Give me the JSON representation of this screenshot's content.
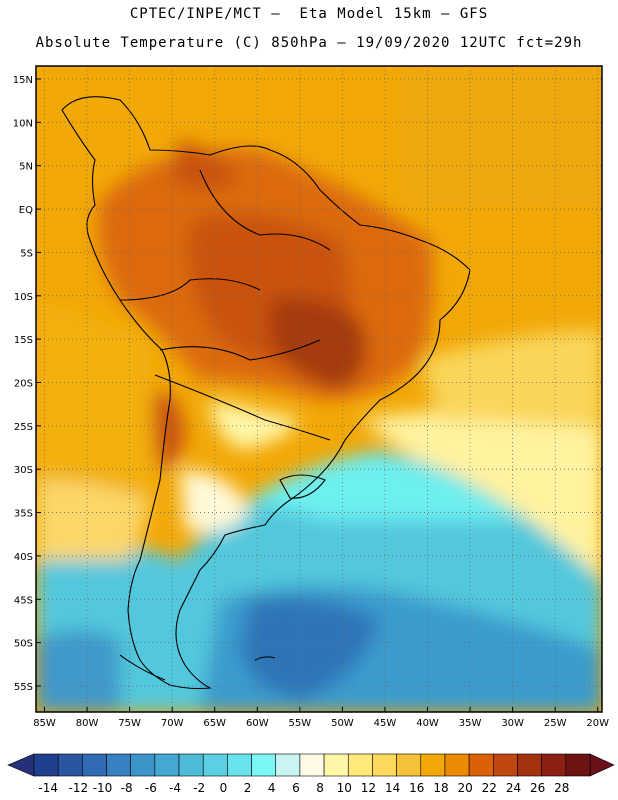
{
  "header": {
    "title_line1": "CPTEC/INPE/MCT –  Eta Model 15km – GFS",
    "title_line2": "Absolute Temperature (C) 850hPa – 19/09/2020 12UTC fct=29h"
  },
  "map": {
    "region": "South America",
    "lon_range": [
      -86,
      -19.5
    ],
    "lat_range": [
      -58,
      16.5
    ],
    "lon_ticks": [
      {
        "value": -85,
        "label": "85W"
      },
      {
        "value": -80,
        "label": "80W"
      },
      {
        "value": -75,
        "label": "75W"
      },
      {
        "value": -70,
        "label": "70W"
      },
      {
        "value": -65,
        "label": "65W"
      },
      {
        "value": -60,
        "label": "60W"
      },
      {
        "value": -55,
        "label": "55W"
      },
      {
        "value": -50,
        "label": "50W"
      },
      {
        "value": -45,
        "label": "45W"
      },
      {
        "value": -40,
        "label": "40W"
      },
      {
        "value": -35,
        "label": "35W"
      },
      {
        "value": -30,
        "label": "30W"
      },
      {
        "value": -25,
        "label": "25W"
      },
      {
        "value": -20,
        "label": "20W"
      }
    ],
    "lat_ticks": [
      {
        "value": 15,
        "label": "15N"
      },
      {
        "value": 10,
        "label": "10N"
      },
      {
        "value": 5,
        "label": "5N"
      },
      {
        "value": 0,
        "label": "EQ"
      },
      {
        "value": -5,
        "label": "5S"
      },
      {
        "value": -10,
        "label": "10S"
      },
      {
        "value": -15,
        "label": "15S"
      },
      {
        "value": -20,
        "label": "20S"
      },
      {
        "value": -25,
        "label": "25S"
      },
      {
        "value": -30,
        "label": "30S"
      },
      {
        "value": -35,
        "label": "35S"
      },
      {
        "value": -40,
        "label": "40S"
      },
      {
        "value": -45,
        "label": "45S"
      },
      {
        "value": -50,
        "label": "50S"
      },
      {
        "value": -55,
        "label": "55S"
      }
    ],
    "grid": "dotted"
  },
  "colorbar": {
    "labels": [
      "-14",
      "-12",
      "-10",
      "-8",
      "-6",
      "-4",
      "-2",
      "0",
      "2",
      "4",
      "6",
      "8",
      "10",
      "12",
      "14",
      "16",
      "18",
      "20",
      "22",
      "24",
      "26",
      "28"
    ],
    "colors": [
      "#1f3f8f",
      "#2a55a0",
      "#306bb3",
      "#3781c0",
      "#3c94c8",
      "#44a8d2",
      "#4ebcd8",
      "#5ad0e2",
      "#68e2ec",
      "#7cf5f5",
      "#c9f4f4",
      "#fffbe6",
      "#fff7a8",
      "#ffe97a",
      "#fcd85b",
      "#f6c23a",
      "#f2a807",
      "#eb8a05",
      "#dc6008",
      "#c14710",
      "#a4320f",
      "#8b2012",
      "#6b1411"
    ],
    "arrow_left": "#26307a",
    "arrow_right": "#6b0f1a"
  }
}
